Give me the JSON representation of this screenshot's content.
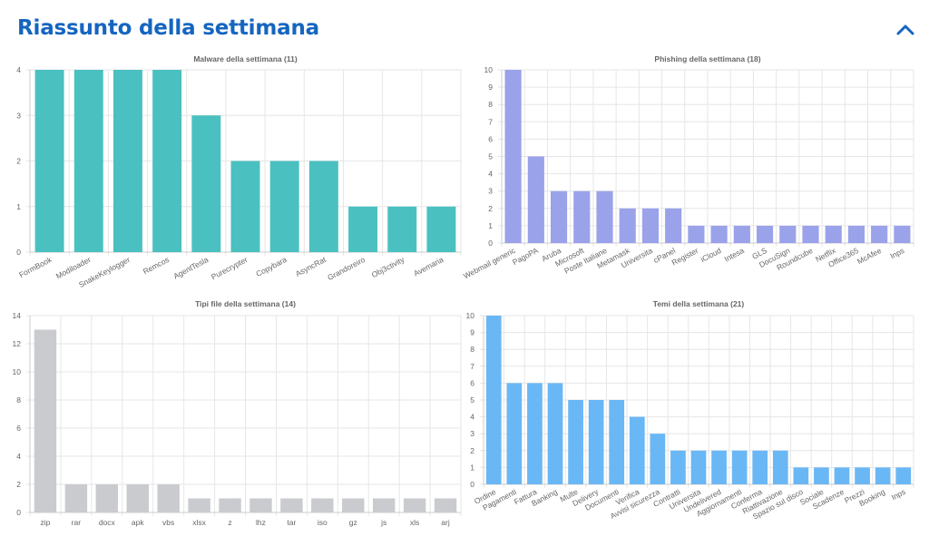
{
  "header": {
    "title": "Riassunto della settimana"
  },
  "colors": {
    "title": "#1565c0"
  },
  "chart_data": [
    {
      "type": "bar",
      "title": "Malware della settimana (11)",
      "categories": [
        "FormBook",
        "Modiloader",
        "SnakeKeylogger",
        "Remcos",
        "AgentTesla",
        "Purecrypter",
        "Copybara",
        "AsyncRat",
        "Grandoreiro",
        "Obj3ctivity",
        "Avemaria"
      ],
      "values": [
        4,
        4,
        4,
        4,
        3,
        2,
        2,
        2,
        1,
        1,
        1
      ],
      "ylim": [
        0,
        4
      ],
      "yticks": [
        0,
        1,
        2,
        3,
        4
      ],
      "color": "#4bc0c0",
      "grid": true
    },
    {
      "type": "bar",
      "title": "Phishing della settimana (18)",
      "categories": [
        "Webmail generic",
        "PagoPA",
        "Aruba",
        "Microsoft",
        "Poste Italiane",
        "Metamask",
        "Universita",
        "cPanel",
        "Register",
        "iCloud",
        "Intesa",
        "GLS",
        "DocuSign",
        "Roundcube",
        "Netflix",
        "Office365",
        "McAfee",
        "Inps"
      ],
      "values": [
        10,
        5,
        3,
        3,
        3,
        2,
        2,
        2,
        1,
        1,
        1,
        1,
        1,
        1,
        1,
        1,
        1,
        1
      ],
      "ylim": [
        0,
        10
      ],
      "yticks": [
        0,
        1,
        2,
        3,
        4,
        5,
        6,
        7,
        8,
        9,
        10
      ],
      "color": "#9aa2ea",
      "grid": true
    },
    {
      "type": "bar",
      "title": "Tipi file della settimana (14)",
      "categories": [
        "zip",
        "rar",
        "docx",
        "apk",
        "vbs",
        "xlsx",
        "z",
        "lhz",
        "tar",
        "iso",
        "gz",
        "js",
        "xls",
        "arj"
      ],
      "values": [
        13,
        2,
        2,
        2,
        2,
        1,
        1,
        1,
        1,
        1,
        1,
        1,
        1,
        1
      ],
      "ylim": [
        0,
        14
      ],
      "yticks": [
        0,
        2,
        4,
        6,
        8,
        10,
        12,
        14
      ],
      "color": "#c9cbcf",
      "grid": true
    },
    {
      "type": "bar",
      "title": "Temi della settimana (21)",
      "categories": [
        "Ordine",
        "Pagamenti",
        "Fattura",
        "Banking",
        "Multe",
        "Delivery",
        "Documenti",
        "Verifica",
        "Avvisi sicurezza",
        "Contratti",
        "Universita",
        "Undelivered",
        "Aggiornamenti",
        "Conferma",
        "Riattivazione",
        "Spazio sul disco",
        "Sociale",
        "Scadenze",
        "Prezzi",
        "Booking",
        "Inps"
      ],
      "values": [
        10,
        6,
        6,
        6,
        5,
        5,
        5,
        4,
        3,
        2,
        2,
        2,
        2,
        2,
        2,
        1,
        1,
        1,
        1,
        1,
        1
      ],
      "ylim": [
        0,
        10
      ],
      "yticks": [
        0,
        1,
        2,
        3,
        4,
        5,
        6,
        7,
        8,
        9,
        10
      ],
      "color": "#6ab7f5",
      "grid": true
    }
  ]
}
